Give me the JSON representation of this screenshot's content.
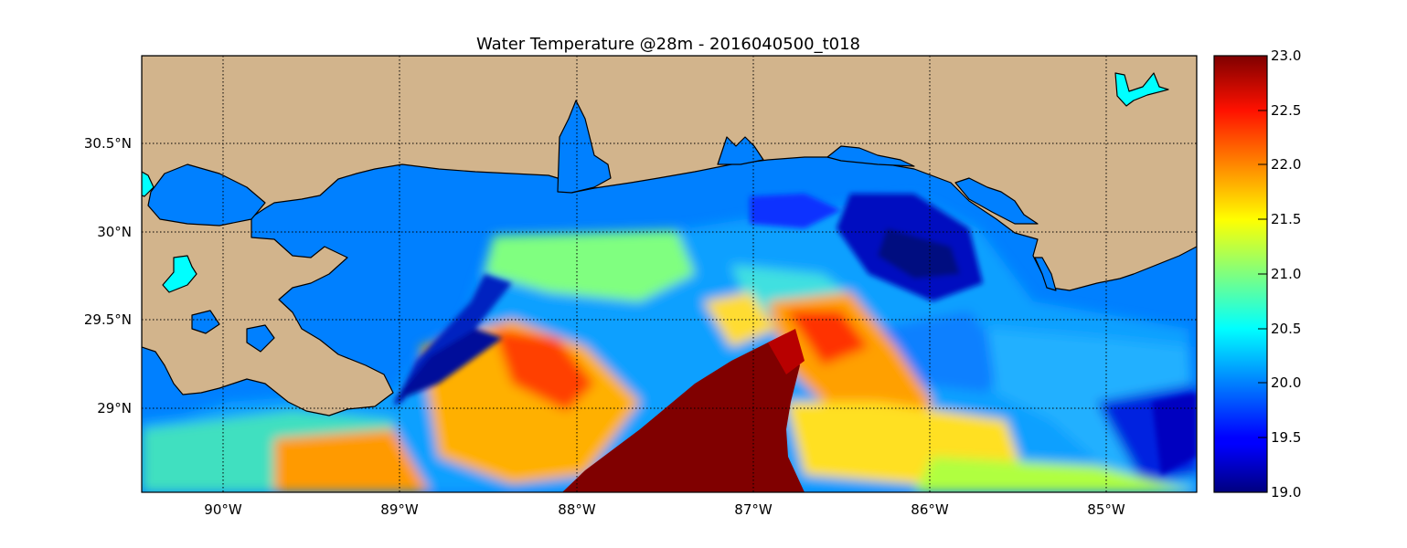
{
  "map": {
    "title": "Water Temperature @28m - 2016040500_t018",
    "extent": {
      "lon_min": -90.47,
      "lon_max": -84.5,
      "lat_min": 28.55,
      "lat_max": 31.0
    },
    "grid": true,
    "longitude_labels": [
      "90°W",
      "89°W",
      "88°W",
      "87°W",
      "86°W",
      "85°W"
    ],
    "latitude_labels": [
      "30.5°N",
      "30°N",
      "29.5°N",
      "29°N"
    ],
    "colors": {
      "land": "#d2b48c",
      "open_water_masked": "#0080ff",
      "inland_lakes": "#00ffff",
      "coastline": "#000000"
    }
  },
  "colorbar": {
    "min": 19.0,
    "max": 23.0,
    "colormap": "jet",
    "tick_labels": [
      "23.0",
      "22.5",
      "22.0",
      "21.5",
      "21.0",
      "20.5",
      "20.0",
      "19.5",
      "19.0"
    ]
  }
}
